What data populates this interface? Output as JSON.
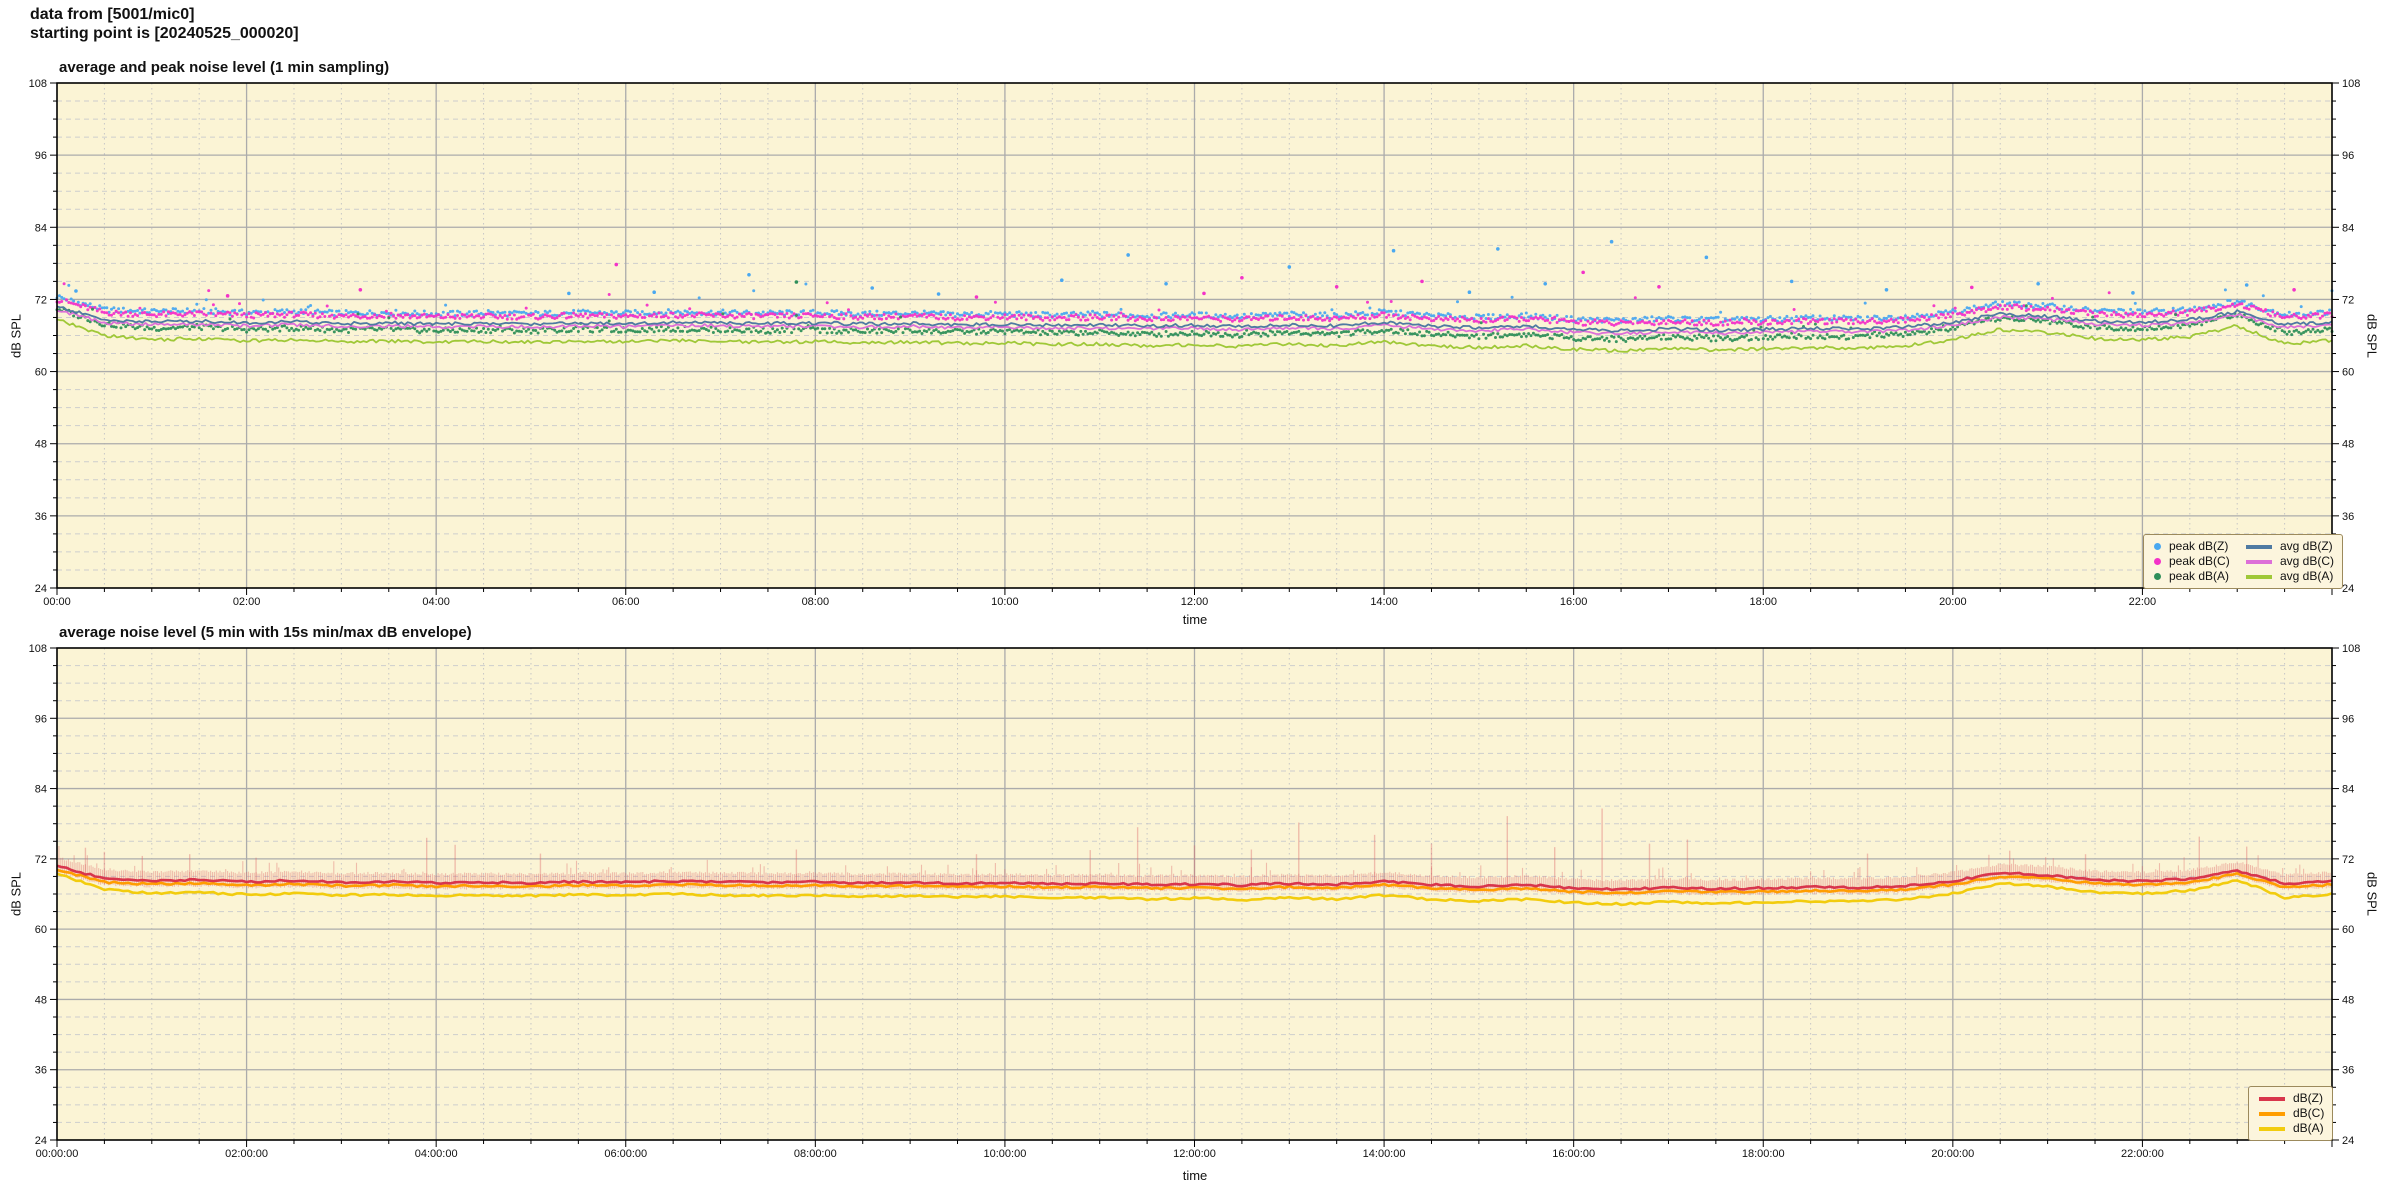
{
  "header": {
    "line1": "data from [5001/mic0]",
    "line2": "starting point is [20240525_000020]"
  },
  "colors": {
    "page_bg": "#ffffff",
    "plot_bg": "#fbf4d5",
    "plot_border": "#000000",
    "grid_major": "#ababab",
    "grid_minor_h": "#cdcdcd",
    "grid_minor_v": "#c6c6c6",
    "tick": "#000000",
    "text": "#111111",
    "legend_bg": "#fcf5dd",
    "legend_border": "#9c8a5c",
    "envelope": "rgba(222,106,106,0.40)"
  },
  "axes": {
    "ylabel": "dB SPL",
    "xlabel": "time",
    "ylim": [
      24,
      108
    ],
    "y_major_ticks": [
      24,
      36,
      48,
      60,
      72,
      84,
      96,
      108
    ],
    "y_minor_step_db": 3,
    "x_range_hours": [
      0,
      24
    ],
    "x_major_step_hours": 2,
    "x_minor_step_hours": 0.5
  },
  "chart_data": [
    {
      "type": "scatter+line",
      "title": "average and peak noise level (1 min sampling)",
      "xlabel": "time",
      "ylabel": "dB SPL",
      "ylim": [
        24,
        108
      ],
      "x_hours_step": 0.5,
      "x_tick_hours": [
        0,
        2,
        4,
        6,
        8,
        10,
        12,
        14,
        16,
        18,
        20,
        22
      ],
      "x_ticklabels": [
        "00:00",
        "02:00",
        "04:00",
        "06:00",
        "08:00",
        "10:00",
        "12:00",
        "14:00",
        "16:00",
        "18:00",
        "20:00",
        "22:00"
      ],
      "legend_position": "bottom-right",
      "series": [
        {
          "name": "peak dB(Z)",
          "style": "scatter",
          "color": "#4aa8f0",
          "values": [
            72.5,
            70.3,
            70.0,
            70.1,
            69.8,
            70.0,
            69.7,
            69.8,
            69.6,
            69.7,
            69.6,
            69.8,
            69.7,
            69.9,
            69.8,
            69.7,
            69.8,
            69.6,
            69.7,
            69.5,
            69.6,
            69.4,
            69.5,
            69.3,
            69.4,
            69.2,
            69.5,
            69.3,
            69.9,
            69.3,
            69.0,
            69.3,
            68.7,
            68.5,
            68.8,
            68.6,
            68.7,
            68.9,
            68.8,
            69.1,
            69.9,
            71.3,
            70.9,
            70.1,
            69.9,
            70.3,
            71.7,
            69.5,
            69.9
          ]
        },
        {
          "name": "peak dB(C)",
          "style": "scatter",
          "color": "#f332c8",
          "values": [
            72.0,
            69.8,
            69.5,
            69.6,
            69.3,
            69.5,
            69.2,
            69.3,
            69.1,
            69.2,
            69.1,
            69.3,
            69.2,
            69.4,
            69.3,
            69.2,
            69.3,
            69.1,
            69.2,
            69.0,
            69.1,
            68.9,
            69.0,
            68.8,
            68.9,
            68.7,
            69.0,
            68.8,
            69.4,
            68.8,
            68.5,
            68.8,
            68.2,
            68.0,
            68.3,
            68.1,
            68.2,
            68.4,
            68.3,
            68.6,
            69.4,
            70.8,
            70.4,
            69.6,
            69.4,
            69.8,
            71.2,
            69.0,
            69.4
          ]
        },
        {
          "name": "peak dB(A)",
          "style": "scatter",
          "color": "#2f8f5a",
          "values": [
            70.5,
            67.9,
            67.2,
            67.4,
            67.0,
            67.2,
            66.9,
            67.0,
            66.8,
            66.9,
            66.8,
            67.0,
            66.9,
            67.1,
            66.9,
            66.8,
            66.9,
            66.7,
            66.8,
            66.6,
            66.7,
            66.4,
            66.5,
            66.2,
            66.4,
            66.1,
            66.5,
            66.2,
            66.9,
            66.2,
            65.9,
            66.2,
            65.6,
            65.4,
            65.8,
            65.5,
            65.7,
            65.9,
            65.8,
            66.2,
            67.2,
            68.9,
            68.4,
            67.4,
            67.2,
            67.7,
            69.5,
            66.5,
            67.1
          ]
        },
        {
          "name": "avg dB(Z)",
          "style": "line",
          "color": "#4f7aa2",
          "values": [
            70.8,
            68.6,
            68.3,
            68.4,
            68.1,
            68.3,
            68.0,
            68.1,
            67.9,
            68.0,
            67.9,
            68.1,
            68.0,
            68.2,
            68.1,
            68.0,
            68.1,
            67.9,
            68.0,
            67.8,
            67.9,
            67.7,
            67.8,
            67.6,
            67.7,
            67.5,
            67.8,
            67.6,
            68.2,
            67.6,
            67.3,
            67.6,
            67.0,
            66.8,
            67.1,
            66.9,
            67.0,
            67.2,
            67.1,
            67.4,
            68.2,
            69.6,
            69.2,
            68.4,
            68.2,
            68.6,
            70.0,
            67.8,
            68.2
          ]
        },
        {
          "name": "avg dB(C)",
          "style": "line",
          "color": "#dd6fd8",
          "values": [
            70.3,
            68.1,
            67.8,
            67.9,
            67.6,
            67.8,
            67.5,
            67.6,
            67.4,
            67.5,
            67.4,
            67.6,
            67.5,
            67.7,
            67.6,
            67.5,
            67.6,
            67.4,
            67.5,
            67.3,
            67.4,
            67.2,
            67.3,
            67.1,
            67.2,
            67.0,
            67.3,
            67.1,
            67.7,
            67.1,
            66.8,
            67.1,
            66.5,
            66.3,
            66.6,
            66.4,
            66.5,
            66.7,
            66.6,
            66.9,
            67.7,
            69.1,
            68.7,
            67.9,
            67.7,
            68.1,
            69.5,
            67.3,
            67.7
          ]
        },
        {
          "name": "avg dB(A)",
          "style": "line",
          "color": "#9fc838",
          "values": [
            68.6,
            66.0,
            65.3,
            65.5,
            65.1,
            65.3,
            65.0,
            65.1,
            64.9,
            65.0,
            64.9,
            65.1,
            65.0,
            65.2,
            65.0,
            64.9,
            65.0,
            64.8,
            64.9,
            64.7,
            64.8,
            64.5,
            64.6,
            64.3,
            64.5,
            64.2,
            64.6,
            64.3,
            65.0,
            64.3,
            64.0,
            64.3,
            63.7,
            63.5,
            63.9,
            63.6,
            63.8,
            64.0,
            63.9,
            64.3,
            65.3,
            67.0,
            66.5,
            65.5,
            65.3,
            65.8,
            67.6,
            64.6,
            65.2
          ]
        }
      ],
      "peak_outliers": [
        [
          0.2,
          73.4,
          0
        ],
        [
          1.8,
          72.6,
          1
        ],
        [
          3.2,
          73.6,
          1
        ],
        [
          5.4,
          73.0,
          0
        ],
        [
          5.9,
          77.8,
          1
        ],
        [
          6.3,
          73.2,
          0
        ],
        [
          7.3,
          76.1,
          0
        ],
        [
          7.8,
          74.9,
          2
        ],
        [
          8.6,
          73.9,
          0
        ],
        [
          9.3,
          72.9,
          0
        ],
        [
          9.7,
          72.4,
          1
        ],
        [
          10.6,
          75.2,
          0
        ],
        [
          11.3,
          79.4,
          0
        ],
        [
          11.7,
          74.6,
          0
        ],
        [
          12.1,
          73.0,
          1
        ],
        [
          12.5,
          75.6,
          1
        ],
        [
          13.0,
          77.4,
          0
        ],
        [
          13.5,
          74.1,
          1
        ],
        [
          14.1,
          80.1,
          0
        ],
        [
          14.4,
          75.0,
          1
        ],
        [
          14.9,
          73.2,
          0
        ],
        [
          15.2,
          80.4,
          0
        ],
        [
          15.7,
          74.6,
          0
        ],
        [
          16.1,
          76.5,
          1
        ],
        [
          16.4,
          81.6,
          0
        ],
        [
          16.9,
          74.1,
          1
        ],
        [
          17.4,
          79.0,
          0
        ],
        [
          18.3,
          75.0,
          0
        ],
        [
          19.3,
          73.6,
          0
        ],
        [
          20.2,
          74.0,
          1
        ],
        [
          20.9,
          74.6,
          0
        ],
        [
          21.9,
          73.1,
          0
        ],
        [
          23.1,
          74.4,
          0
        ],
        [
          23.6,
          73.6,
          1
        ]
      ]
    },
    {
      "type": "line+envelope",
      "title": "average noise level (5 min with 15s min/max dB envelope)",
      "xlabel": "time",
      "ylabel": "dB SPL",
      "ylim": [
        24,
        108
      ],
      "x_hours_step": 0.5,
      "x_tick_hours": [
        0,
        2,
        4,
        6,
        8,
        10,
        12,
        14,
        16,
        18,
        20,
        22
      ],
      "x_ticklabels": [
        "00:00:00",
        "02:00:00",
        "04:00:00",
        "06:00:00",
        "08:00:00",
        "10:00:00",
        "12:00:00",
        "14:00:00",
        "16:00:00",
        "18:00:00",
        "20:00:00",
        "22:00:00"
      ],
      "legend_position": "bottom-right",
      "series": [
        {
          "name": "dB(Z)",
          "style": "line",
          "color": "#d8354c",
          "values": [
            70.8,
            68.6,
            68.3,
            68.4,
            68.1,
            68.3,
            68.0,
            68.1,
            67.9,
            68.0,
            67.9,
            68.1,
            68.0,
            68.2,
            68.1,
            68.0,
            68.1,
            67.9,
            68.0,
            67.8,
            67.9,
            67.7,
            67.8,
            67.6,
            67.7,
            67.5,
            67.8,
            67.6,
            68.2,
            67.6,
            67.3,
            67.6,
            67.0,
            66.8,
            67.1,
            66.9,
            67.0,
            67.2,
            67.1,
            67.4,
            68.2,
            69.6,
            69.2,
            68.4,
            68.2,
            68.6,
            70.0,
            67.8,
            68.2
          ]
        },
        {
          "name": "dB(C)",
          "style": "line",
          "color": "#ff9d00",
          "values": [
            70.2,
            68.0,
            67.7,
            67.8,
            67.5,
            67.7,
            67.4,
            67.5,
            67.3,
            67.4,
            67.3,
            67.5,
            67.4,
            67.6,
            67.5,
            67.4,
            67.5,
            67.3,
            67.4,
            67.2,
            67.3,
            67.1,
            67.2,
            67.0,
            67.1,
            66.9,
            67.2,
            67.0,
            67.6,
            67.0,
            66.7,
            67.0,
            66.4,
            66.2,
            66.5,
            66.3,
            66.4,
            66.6,
            66.5,
            66.8,
            67.6,
            69.0,
            68.6,
            67.8,
            67.6,
            68.0,
            69.4,
            67.2,
            67.6
          ]
        },
        {
          "name": "dB(A)",
          "style": "line",
          "color": "#f2cc0e",
          "values": [
            69.4,
            66.8,
            66.1,
            66.3,
            65.9,
            66.1,
            65.8,
            65.9,
            65.7,
            65.8,
            65.7,
            65.9,
            65.8,
            66.0,
            65.8,
            65.7,
            65.8,
            65.6,
            65.7,
            65.5,
            65.6,
            65.3,
            65.4,
            65.1,
            65.3,
            65.0,
            65.4,
            65.1,
            65.8,
            65.1,
            64.8,
            65.1,
            64.5,
            64.3,
            64.7,
            64.4,
            64.6,
            64.8,
            64.7,
            65.1,
            66.1,
            67.8,
            67.3,
            66.3,
            66.1,
            66.6,
            68.4,
            65.4,
            66.0
          ]
        }
      ],
      "envelope": {
        "applies_to": "dB(Z)",
        "hi": [
          72.1,
          69.9,
          69.6,
          69.7,
          69.4,
          69.6,
          69.3,
          69.4,
          69.2,
          69.3,
          69.2,
          69.4,
          69.3,
          69.5,
          69.4,
          69.3,
          69.4,
          69.2,
          69.3,
          69.1,
          69.2,
          69.0,
          69.1,
          68.9,
          69.0,
          68.8,
          69.1,
          68.9,
          69.5,
          68.9,
          68.6,
          68.9,
          68.3,
          68.1,
          68.4,
          68.2,
          68.3,
          68.5,
          68.4,
          68.7,
          69.5,
          70.9,
          70.5,
          69.7,
          69.5,
          69.9,
          71.3,
          69.1,
          69.5
        ],
        "lo": [
          69.9,
          67.7,
          67.4,
          67.5,
          67.2,
          67.4,
          67.1,
          67.2,
          67.0,
          67.1,
          67.0,
          67.2,
          67.1,
          67.3,
          67.2,
          67.1,
          67.2,
          67.0,
          67.1,
          66.9,
          67.0,
          66.8,
          66.9,
          66.7,
          66.8,
          66.6,
          66.9,
          66.7,
          67.3,
          66.7,
          66.4,
          66.7,
          66.1,
          65.9,
          66.2,
          66.0,
          66.1,
          66.3,
          66.2,
          66.5,
          67.3,
          68.7,
          68.3,
          67.5,
          67.3,
          67.7,
          69.1,
          66.9,
          67.3
        ],
        "spikes": [
          [
            0.3,
            73.9
          ],
          [
            0.5,
            73.2
          ],
          [
            0.9,
            72.5
          ],
          [
            1.4,
            72.8
          ],
          [
            2.1,
            72.2
          ],
          [
            3.9,
            75.6
          ],
          [
            4.2,
            74.4
          ],
          [
            5.1,
            72.9
          ],
          [
            7.8,
            73.6
          ],
          [
            9.7,
            72.8
          ],
          [
            10.9,
            73.5
          ],
          [
            11.4,
            77.4
          ],
          [
            12.0,
            74.3
          ],
          [
            12.6,
            73.6
          ],
          [
            13.1,
            78.2
          ],
          [
            13.9,
            76.1
          ],
          [
            14.5,
            74.6
          ],
          [
            15.3,
            79.3
          ],
          [
            15.8,
            74.0
          ],
          [
            16.3,
            80.6
          ],
          [
            16.8,
            74.6
          ],
          [
            17.2,
            75.3
          ],
          [
            19.1,
            72.9
          ],
          [
            20.6,
            73.4
          ],
          [
            21.4,
            72.8
          ],
          [
            22.6,
            75.8
          ],
          [
            23.1,
            74.1
          ]
        ]
      }
    }
  ],
  "render": {
    "top_line_noise_db": 0.55,
    "top_scatter_noise_db": 0.9,
    "bottom_line_noise_db": 0.35,
    "envelope_noise_db": 0.85
  }
}
